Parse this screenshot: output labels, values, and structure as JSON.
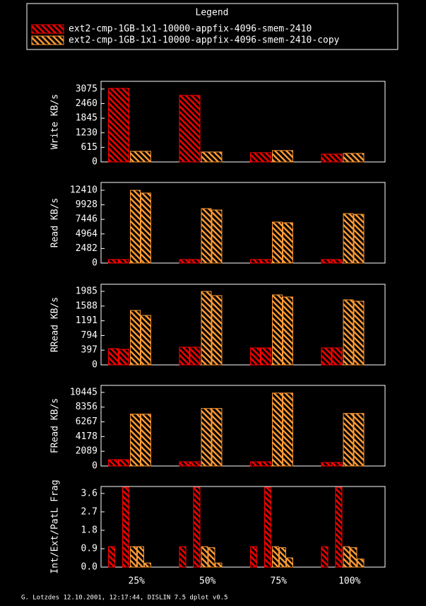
{
  "legend": {
    "title": "Legend",
    "entries": [
      {
        "name": "ext2-cmp-1GB-1x1-10000-appfix-4096-smem-2410",
        "color": "#ff0000"
      },
      {
        "name": "ext2-cmp-1GB-1x1-10000-appfix-4096-smem-2410-copy",
        "color": "#ff9933"
      }
    ]
  },
  "chart_data": [
    {
      "type": "bar",
      "ylabel": "Write KB/s",
      "ylim": [
        0,
        3400
      ],
      "yticks": [
        0,
        615,
        1230,
        1845,
        2460,
        3075
      ],
      "series": [
        {
          "values": [
            [
              3100
            ],
            [
              2806
            ],
            [
              390
            ],
            [
              330
            ]
          ]
        },
        {
          "values": [
            [
              448
            ],
            [
              420
            ],
            [
              480
            ],
            [
              360
            ]
          ]
        }
      ]
    },
    {
      "type": "bar",
      "ylabel": "Read KB/s",
      "ylim": [
        0,
        13740
      ],
      "yticks": [
        0,
        2482,
        4964,
        7446,
        9928,
        12410
      ],
      "series": [
        {
          "values": [
            [
              600,
              600
            ],
            [
              600,
              600
            ],
            [
              600,
              600
            ],
            [
              600,
              600
            ]
          ]
        },
        {
          "values": [
            [
              12400,
              11930
            ],
            [
              9280,
              9040
            ],
            [
              6990,
              6870
            ],
            [
              8430,
              8310
            ]
          ]
        }
      ]
    },
    {
      "type": "bar",
      "ylabel": "RRead KB/s",
      "ylim": [
        0,
        2177
      ],
      "yticks": [
        0,
        397,
        794,
        1191,
        1588,
        1985
      ],
      "series": [
        {
          "values": [
            [
              439,
              420
            ],
            [
              478,
              478
            ],
            [
              458,
              458
            ],
            [
              458,
              458
            ]
          ]
        },
        {
          "values": [
            [
              1470,
              1336
            ],
            [
              1985,
              1870
            ],
            [
              1890,
              1833
            ],
            [
              1757,
              1719
            ]
          ]
        }
      ]
    },
    {
      "type": "bar",
      "ylabel": "FRead KB/s",
      "ylim": [
        0,
        11440
      ],
      "yticks": [
        0,
        2089,
        4178,
        6267,
        8356,
        10445
      ],
      "series": [
        {
          "values": [
            [
              895,
              895
            ],
            [
              600,
              600
            ],
            [
              600,
              600
            ],
            [
              500,
              500
            ]
          ]
        },
        {
          "values": [
            [
              7360,
              7360
            ],
            [
              8160,
              8160
            ],
            [
              10350,
              10350
            ],
            [
              7460,
              7460
            ]
          ]
        }
      ]
    },
    {
      "type": "bar",
      "ylabel": "Int/Ext/PatL Frag",
      "ylim": [
        0,
        3.94
      ],
      "yticks": [
        {
          "value": 0,
          "label": "0.0"
        },
        0.9,
        1.8,
        2.7,
        3.6
      ],
      "categories": [
        "25%",
        "50%",
        "75%",
        "100%"
      ],
      "series": [
        {
          "values": [
            [
              1.0,
              0,
              3.9
            ],
            [
              1.0,
              0,
              3.9
            ],
            [
              1.0,
              0,
              3.9
            ],
            [
              1.0,
              0,
              3.9
            ]
          ]
        },
        {
          "values": [
            [
              1.0,
              1.0,
              0.2
            ],
            [
              1.0,
              0.95,
              0.2
            ],
            [
              1.0,
              0.95,
              0.45
            ],
            [
              1.0,
              0.95,
              0.4
            ]
          ]
        }
      ]
    }
  ],
  "footer": "G. Lotzdes 12.10.2001, 12:17:44, DISLIN 7.5 dplot v0.5"
}
